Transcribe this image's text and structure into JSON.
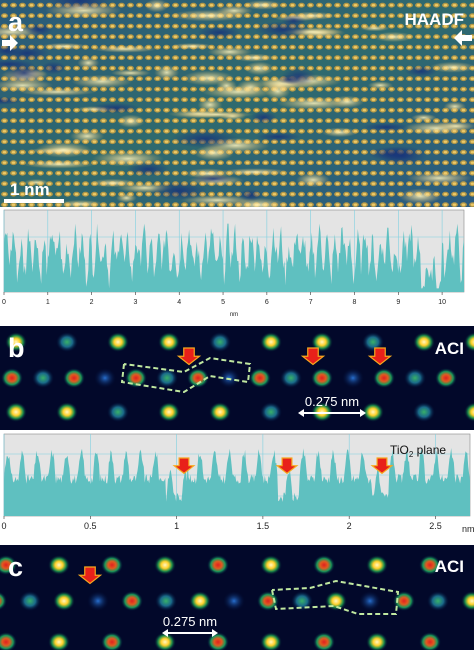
{
  "panel_a": {
    "letter": "a",
    "mode_label": "HAADF",
    "scalebar_label": "1 nm",
    "profile": {
      "x_ticks": [
        "0",
        "1",
        "2",
        "3",
        "4",
        "5",
        "6",
        "7",
        "8",
        "9",
        "10"
      ],
      "x_unit": "nm",
      "xlim": [
        0,
        10.5
      ]
    }
  },
  "panel_b": {
    "letter": "b",
    "mode_label": "ACI",
    "distance_label": "0.275 nm",
    "plane_label_main": "TiO",
    "plane_label_sub": "2",
    "plane_label_tail": " plane",
    "profile": {
      "x_ticks": [
        "0",
        "0.5",
        "1",
        "1.5",
        "2",
        "2.5"
      ],
      "x_unit": "nm",
      "xlim": [
        0,
        2.7
      ]
    }
  },
  "panel_c": {
    "letter": "c",
    "mode_label": "ACI",
    "distance_label": "0.275 nm"
  },
  "colors": {
    "profile_fill": "#5fc0c0",
    "profile_bg": "#e4e4e4",
    "marker_red": "#e8201a",
    "marker_orange": "#f6a81e",
    "dash_green": "#b9e0a0"
  }
}
